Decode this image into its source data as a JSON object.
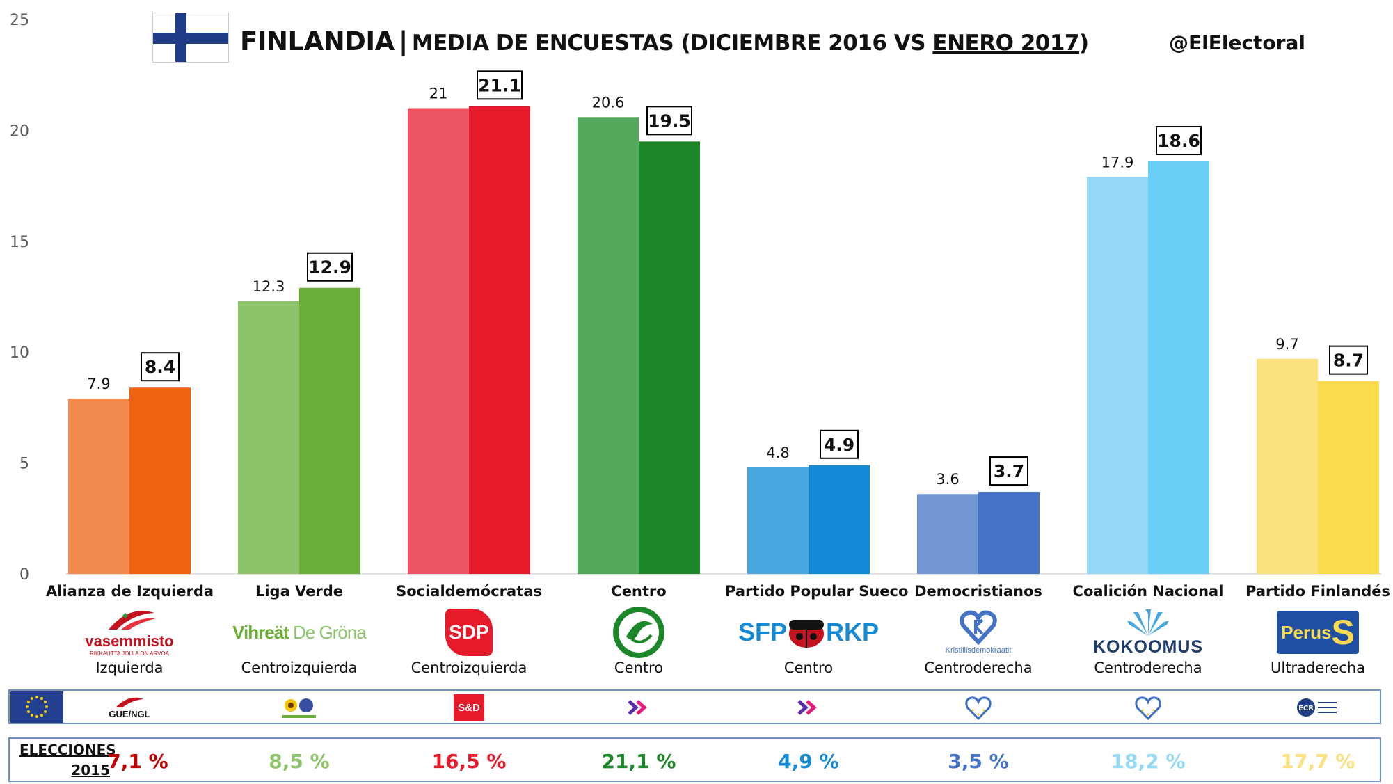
{
  "header": {
    "country": "FINLANDIA",
    "separator": "|",
    "subtitle_prefix": "MEDIA DE ENCUESTAS (DICIEMBRE 2016 VS ",
    "subtitle_underlined": "ENERO 2017",
    "subtitle_suffix": ")",
    "handle": "@ElElectoral",
    "flag_icon": "finland-flag-icon"
  },
  "chart_data": {
    "type": "bar",
    "title": "FINLANDIA | MEDIA DE ENCUESTAS (DICIEMBRE 2016 VS ENERO 2017)",
    "ylim": [
      0,
      25
    ],
    "yticks": [
      "0",
      "5",
      "10",
      "15",
      "20",
      "25"
    ],
    "grid": false,
    "categories": [
      "Alianza de Izquierda",
      "Liga Verde",
      "Socialdemócratas",
      "Centro",
      "Partido Popular Sueco",
      "Democristianos",
      "Coalición Nacional",
      "Partido Finlandés"
    ],
    "series": [
      {
        "values": [
          7.9,
          12.3,
          21,
          20.6,
          4.8,
          3.6,
          17.9,
          9.7
        ],
        "labels": [
          "7.9",
          "12.3",
          "21",
          "20.6",
          "4.8",
          "3.6",
          "17.9",
          "9.7"
        ],
        "colors": [
          "#f28a4e",
          "#8cc36b",
          "#ed5563",
          "#54a85c",
          "#4aa8e0",
          "#7396d4",
          "#94daf6",
          "#fbe07e"
        ]
      },
      {
        "values": [
          8.4,
          12.9,
          21.1,
          19.5,
          4.9,
          3.7,
          18.6,
          8.7
        ],
        "labels": [
          "8.4",
          "12.9",
          "21.1",
          "19.5",
          "4.9",
          "3.7",
          "18.6",
          "8.7"
        ],
        "colors": [
          "#ee6412",
          "#6aae37",
          "#e51a2b",
          "#1b8728",
          "#148ad6",
          "#4472c4",
          "#6bcef6",
          "#fbdb4d"
        ]
      }
    ]
  },
  "parties": [
    {
      "ideology": "Izquierda",
      "logo_text": "vasemmisto",
      "logo_sub": "RIKKAUTTA JOLLA ON ARVOA",
      "logo_color": "#c5121f",
      "group": "GUE/NGL",
      "election_2015": "7,1 %",
      "election_color": "#c00000"
    },
    {
      "ideology": "Centroizquierda",
      "logo_text": "Vihreät De Gröna",
      "logo_color": "#6aae37",
      "group": "greens-efa-icon",
      "election_2015": "8,5 %",
      "election_color": "#8cc36b"
    },
    {
      "ideology": "Centroizquierda",
      "logo_text": "SDP",
      "logo_color": "#e51a2b",
      "group": "S&D",
      "election_2015": "16,5 %",
      "election_color": "#e51a2b"
    },
    {
      "ideology": "Centro",
      "logo_text": "",
      "logo_color": "#1b8728",
      "group": "alde-icon",
      "election_2015": "21,1 %",
      "election_color": "#1b8728"
    },
    {
      "ideology": "Centro",
      "logo_text": "SFP",
      "logo_text2": "RKP",
      "logo_color": "#148ad6",
      "group": "alde-icon",
      "election_2015": "4,9 %",
      "election_color": "#148ad6"
    },
    {
      "ideology": "Centroderecha",
      "logo_text": "Kristillisdemokraatit",
      "logo_color": "#4472c4",
      "group": "epp-icon",
      "election_2015": "3,5 %",
      "election_color": "#4472c4"
    },
    {
      "ideology": "Centroderecha",
      "logo_text": "KOKOOMUS",
      "logo_color": "#2b6fb6",
      "group": "epp-icon",
      "election_2015": "18,2 %",
      "election_color": "#94daf6"
    },
    {
      "ideology": "Ultraderecha",
      "logo_text": "Perus",
      "logo_color": "#1f4fa2",
      "group": "ecr-icon",
      "election_2015": "17,7 %",
      "election_color": "#fbe07e"
    }
  ],
  "eu_row": {
    "flag_icon": "eu-flag-icon"
  },
  "elections": {
    "label_line1": "ELECCIONES",
    "label_line2": "2015"
  }
}
